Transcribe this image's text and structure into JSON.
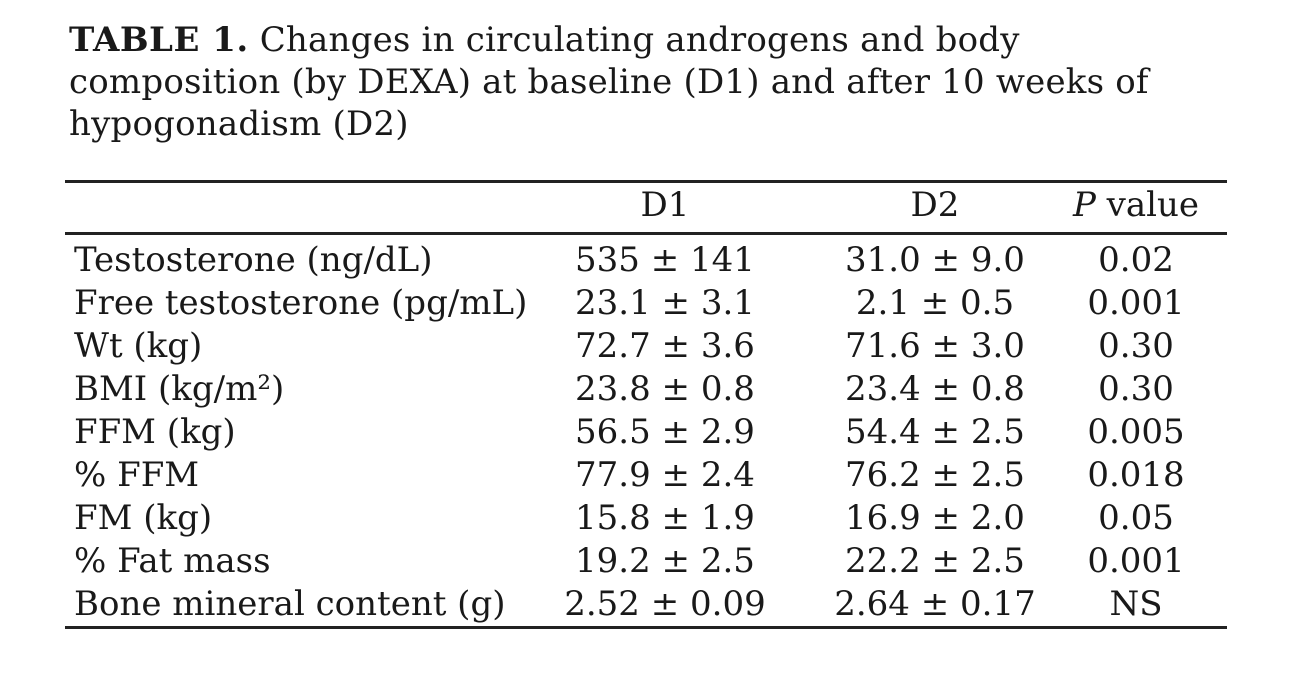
{
  "title": {
    "label": "TABLE 1.",
    "lines": [
      "Changes in circulating androgens and body",
      "composition (by DEXA) at baseline (D1) and after 10 weeks of",
      "hypogonadism (D2)"
    ]
  },
  "table": {
    "header": {
      "label": "",
      "d1": "D1",
      "d2": "D2",
      "p_italic": "P",
      "p_rest": " value"
    },
    "rows": [
      {
        "label": "Testosterone (ng/dL)",
        "d1": "535 ± 141",
        "d2": "31.0 ± 9.0",
        "p": "0.02"
      },
      {
        "label": "Free testosterone (pg/mL)",
        "d1": "23.1 ± 3.1",
        "d2": "2.1 ± 0.5",
        "p": "0.001"
      },
      {
        "label": "Wt (kg)",
        "d1": "72.7 ± 3.6",
        "d2": "71.6 ± 3.0",
        "p": "0.30"
      },
      {
        "label": "BMI (kg/m²)",
        "d1": "23.8 ± 0.8",
        "d2": "23.4 ± 0.8",
        "p": "0.30"
      },
      {
        "label": "FFM (kg)",
        "d1": "56.5 ± 2.9",
        "d2": "54.4 ± 2.5",
        "p": "0.005"
      },
      {
        "label": "% FFM",
        "d1": "77.9 ± 2.4",
        "d2": "76.2 ± 2.5",
        "p": "0.018"
      },
      {
        "label": "FM (kg)",
        "d1": "15.8 ± 1.9",
        "d2": "16.9 ± 2.0",
        "p": "0.05"
      },
      {
        "label": "% Fat mass",
        "d1": "19.2 ± 2.5",
        "d2": "22.2 ± 2.5",
        "p": "0.001"
      },
      {
        "label": "Bone mineral content (g)",
        "d1": "2.52 ± 0.09",
        "d2": "2.64 ± 0.17",
        "p": "NS"
      }
    ]
  }
}
